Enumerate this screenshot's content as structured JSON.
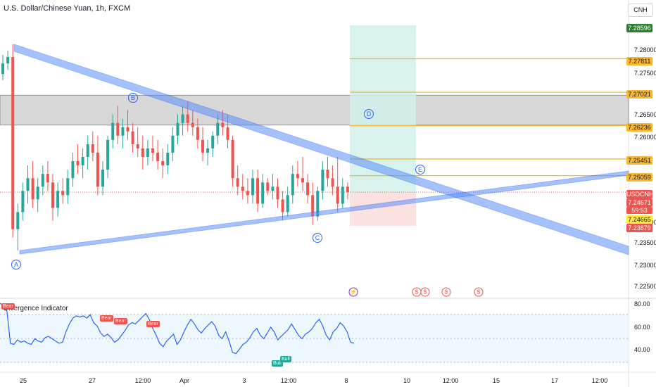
{
  "header": {
    "title": "U.S. Dollar/Chinese Yuan, 1h, FXCM",
    "currency_button": "CNH"
  },
  "price_axis": [
    "7.28000",
    "7.27500",
    "7.26500",
    "7.26000",
    "7.24000",
    "7.23500",
    "7.23000",
    "7.22500"
  ],
  "price_labels": [
    {
      "text": "7.28596",
      "bg": "#2e7d32",
      "fg": "#ffffff"
    },
    {
      "text": "7.27811",
      "bg": "#f7b731",
      "fg": "#131722"
    },
    {
      "text": "7.27021",
      "bg": "#f7b731",
      "fg": "#131722"
    },
    {
      "text": "7.26236",
      "bg": "#f7b731",
      "fg": "#131722"
    },
    {
      "text": "7.25451",
      "bg": "#f7b731",
      "fg": "#131722"
    },
    {
      "text": "7.25059",
      "bg": "#f7b731",
      "fg": "#131722"
    },
    {
      "text": "USDCNH",
      "bg": "#ef5350",
      "fg": "#ffffff"
    },
    {
      "text": "7.24671",
      "bg": "#ef5350",
      "fg": "#ffffff"
    },
    {
      "text": "59:53",
      "bg": "#ef5350",
      "fg": "#ffffff"
    },
    {
      "text": "7.24665",
      "bg": "#ffeb3b",
      "fg": "#131722"
    },
    {
      "text": "7.23879",
      "bg": "#ef5350",
      "fg": "#ffffff"
    }
  ],
  "time_axis": [
    "25",
    "27",
    "12:00",
    "Apr",
    "3",
    "12:00",
    "8",
    "10",
    "12:00",
    "15",
    "17",
    "12:00"
  ],
  "wave_labels": [
    "A",
    "B",
    "C",
    "D",
    "E"
  ],
  "indicator": {
    "title": "Divergence Indicator",
    "axis": [
      "80.00",
      "60.00",
      "40.00"
    ],
    "badges": [
      {
        "text": "Bear",
        "type": "bear"
      },
      {
        "text": "Bear",
        "type": "bear"
      },
      {
        "text": "Bear",
        "type": "bear"
      },
      {
        "text": "Bear",
        "type": "bear"
      },
      {
        "text": "Bull",
        "type": "bull"
      },
      {
        "text": "Bull",
        "type": "bull"
      }
    ]
  },
  "events": [
    {
      "glyph": "⚡",
      "kind": "dividend"
    },
    {
      "glyph": "$",
      "kind": "us"
    },
    {
      "glyph": "$",
      "kind": "us"
    },
    {
      "glyph": "$",
      "kind": "us"
    },
    {
      "glyph": "$",
      "kind": "us"
    }
  ],
  "colors": {
    "up": "#26a69a",
    "down": "#ef5350",
    "trend": "#5b8ff9",
    "fib": "#f7b731",
    "zone": "#b2b5be",
    "profit": "#d1f0eb",
    "loss": "#fbdcdc",
    "rsi": "#2962ff"
  },
  "chart_data": {
    "type": "candlestick",
    "symbol": "USDCNH",
    "ohlc": [
      {
        "o": 7.2745,
        "h": 7.279,
        "l": 7.273,
        "c": 7.277
      },
      {
        "o": 7.277,
        "h": 7.28,
        "l": 7.2755,
        "c": 7.2785
      },
      {
        "o": 7.2785,
        "h": 7.2815,
        "l": 7.236,
        "c": 7.238
      },
      {
        "o": 7.238,
        "h": 7.244,
        "l": 7.233,
        "c": 7.242
      },
      {
        "o": 7.242,
        "h": 7.249,
        "l": 7.24,
        "c": 7.247
      },
      {
        "o": 7.247,
        "h": 7.253,
        "l": 7.244,
        "c": 7.25
      },
      {
        "o": 7.25,
        "h": 7.254,
        "l": 7.243,
        "c": 7.245
      },
      {
        "o": 7.245,
        "h": 7.25,
        "l": 7.242,
        "c": 7.248
      },
      {
        "o": 7.248,
        "h": 7.253,
        "l": 7.246,
        "c": 7.251
      },
      {
        "o": 7.251,
        "h": 7.254,
        "l": 7.247,
        "c": 7.249
      },
      {
        "o": 7.249,
        "h": 7.251,
        "l": 7.24,
        "c": 7.243
      },
      {
        "o": 7.243,
        "h": 7.249,
        "l": 7.241,
        "c": 7.247
      },
      {
        "o": 7.247,
        "h": 7.25,
        "l": 7.244,
        "c": 7.246
      },
      {
        "o": 7.246,
        "h": 7.252,
        "l": 7.244,
        "c": 7.25
      },
      {
        "o": 7.25,
        "h": 7.256,
        "l": 7.248,
        "c": 7.254
      },
      {
        "o": 7.254,
        "h": 7.258,
        "l": 7.251,
        "c": 7.253
      },
      {
        "o": 7.253,
        "h": 7.257,
        "l": 7.25,
        "c": 7.255
      },
      {
        "o": 7.255,
        "h": 7.26,
        "l": 7.252,
        "c": 7.258
      },
      {
        "o": 7.258,
        "h": 7.261,
        "l": 7.254,
        "c": 7.256
      },
      {
        "o": 7.256,
        "h": 7.26,
        "l": 7.246,
        "c": 7.248
      },
      {
        "o": 7.248,
        "h": 7.254,
        "l": 7.246,
        "c": 7.252
      },
      {
        "o": 7.252,
        "h": 7.26,
        "l": 7.25,
        "c": 7.259
      },
      {
        "o": 7.259,
        "h": 7.265,
        "l": 7.257,
        "c": 7.263
      },
      {
        "o": 7.263,
        "h": 7.267,
        "l": 7.258,
        "c": 7.26
      },
      {
        "o": 7.26,
        "h": 7.264,
        "l": 7.257,
        "c": 7.262
      },
      {
        "o": 7.262,
        "h": 7.266,
        "l": 7.259,
        "c": 7.261
      },
      {
        "o": 7.261,
        "h": 7.263,
        "l": 7.256,
        "c": 7.258
      },
      {
        "o": 7.258,
        "h": 7.262,
        "l": 7.255,
        "c": 7.257
      },
      {
        "o": 7.257,
        "h": 7.26,
        "l": 7.252,
        "c": 7.255
      },
      {
        "o": 7.255,
        "h": 7.259,
        "l": 7.253,
        "c": 7.257
      },
      {
        "o": 7.257,
        "h": 7.26,
        "l": 7.254,
        "c": 7.256
      },
      {
        "o": 7.256,
        "h": 7.259,
        "l": 7.252,
        "c": 7.254
      },
      {
        "o": 7.254,
        "h": 7.257,
        "l": 7.25,
        "c": 7.253
      },
      {
        "o": 7.253,
        "h": 7.258,
        "l": 7.251,
        "c": 7.256
      },
      {
        "o": 7.256,
        "h": 7.262,
        "l": 7.254,
        "c": 7.26
      },
      {
        "o": 7.26,
        "h": 7.265,
        "l": 7.258,
        "c": 7.263
      },
      {
        "o": 7.263,
        "h": 7.267,
        "l": 7.26,
        "c": 7.265
      },
      {
        "o": 7.265,
        "h": 7.268,
        "l": 7.261,
        "c": 7.263
      },
      {
        "o": 7.263,
        "h": 7.266,
        "l": 7.26,
        "c": 7.262
      },
      {
        "o": 7.262,
        "h": 7.264,
        "l": 7.257,
        "c": 7.259
      },
      {
        "o": 7.259,
        "h": 7.262,
        "l": 7.254,
        "c": 7.256
      },
      {
        "o": 7.256,
        "h": 7.259,
        "l": 7.253,
        "c": 7.257
      },
      {
        "o": 7.257,
        "h": 7.261,
        "l": 7.255,
        "c": 7.26
      },
      {
        "o": 7.26,
        "h": 7.265,
        "l": 7.258,
        "c": 7.263
      },
      {
        "o": 7.263,
        "h": 7.266,
        "l": 7.26,
        "c": 7.262
      },
      {
        "o": 7.262,
        "h": 7.265,
        "l": 7.257,
        "c": 7.259
      },
      {
        "o": 7.259,
        "h": 7.26,
        "l": 7.248,
        "c": 7.25
      },
      {
        "o": 7.25,
        "h": 7.253,
        "l": 7.246,
        "c": 7.248
      },
      {
        "o": 7.248,
        "h": 7.251,
        "l": 7.245,
        "c": 7.247
      },
      {
        "o": 7.247,
        "h": 7.25,
        "l": 7.244,
        "c": 7.246
      },
      {
        "o": 7.246,
        "h": 7.252,
        "l": 7.244,
        "c": 7.25
      },
      {
        "o": 7.25,
        "h": 7.252,
        "l": 7.242,
        "c": 7.244
      },
      {
        "o": 7.244,
        "h": 7.251,
        "l": 7.243,
        "c": 7.249
      },
      {
        "o": 7.249,
        "h": 7.25,
        "l": 7.246,
        "c": 7.247
      },
      {
        "o": 7.247,
        "h": 7.251,
        "l": 7.245,
        "c": 7.248
      },
      {
        "o": 7.248,
        "h": 7.25,
        "l": 7.243,
        "c": 7.245
      },
      {
        "o": 7.245,
        "h": 7.247,
        "l": 7.24,
        "c": 7.242
      },
      {
        "o": 7.242,
        "h": 7.248,
        "l": 7.241,
        "c": 7.246
      },
      {
        "o": 7.246,
        "h": 7.253,
        "l": 7.244,
        "c": 7.251
      },
      {
        "o": 7.251,
        "h": 7.254,
        "l": 7.248,
        "c": 7.25
      },
      {
        "o": 7.25,
        "h": 7.255,
        "l": 7.247,
        "c": 7.249
      },
      {
        "o": 7.249,
        "h": 7.251,
        "l": 7.244,
        "c": 7.246
      },
      {
        "o": 7.246,
        "h": 7.249,
        "l": 7.239,
        "c": 7.241
      },
      {
        "o": 7.241,
        "h": 7.248,
        "l": 7.24,
        "c": 7.247
      },
      {
        "o": 7.247,
        "h": 7.254,
        "l": 7.245,
        "c": 7.252
      },
      {
        "o": 7.252,
        "h": 7.255,
        "l": 7.248,
        "c": 7.25
      },
      {
        "o": 7.25,
        "h": 7.253,
        "l": 7.246,
        "c": 7.248
      },
      {
        "o": 7.248,
        "h": 7.255,
        "l": 7.242,
        "c": 7.244
      },
      {
        "o": 7.244,
        "h": 7.25,
        "l": 7.243,
        "c": 7.248
      },
      {
        "o": 7.248,
        "h": 7.249,
        "l": 7.245,
        "c": 7.2467
      }
    ],
    "overlays": {
      "fib_levels": [
        7.27811,
        7.27021,
        7.26236,
        7.25451,
        7.25059
      ],
      "zone": {
        "top": 7.2695,
        "bottom": 7.2625
      },
      "take_profit": 7.28596,
      "entry": 7.24665,
      "stop_loss": 7.23879
    },
    "indicator_values": [
      80,
      78,
      73,
      45,
      44,
      48,
      46,
      47,
      45,
      44,
      49,
      47,
      46,
      50,
      51,
      49,
      47,
      45,
      46,
      55,
      62,
      67,
      69,
      68,
      69,
      67,
      70,
      63,
      60,
      54,
      51,
      53,
      50,
      46,
      48,
      52,
      56,
      61,
      63,
      62,
      65,
      68,
      71,
      66,
      58,
      52,
      45,
      42,
      47,
      50,
      53,
      44,
      48,
      55,
      61,
      66,
      62,
      57,
      54,
      58,
      61,
      64,
      60,
      52,
      49,
      55,
      47,
      37,
      36,
      40,
      44,
      46,
      50,
      55,
      58,
      52,
      49,
      54,
      59,
      55,
      48,
      51,
      54,
      57,
      62,
      57,
      52,
      49,
      53,
      55,
      58,
      63,
      66,
      60,
      52,
      48,
      55,
      58,
      63,
      60,
      55,
      46,
      45
    ]
  }
}
